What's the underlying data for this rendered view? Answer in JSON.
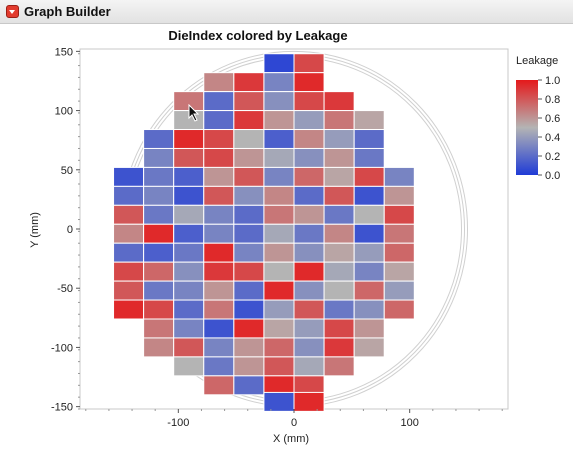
{
  "window": {
    "title": "Graph Builder",
    "disclosure_icon": "red-disclosure-triangle-icon"
  },
  "cursor": {
    "icon": "mouse-pointer-icon"
  },
  "colors": {
    "low": "#1f3bd6",
    "mid": "#b4b4b4",
    "high": "#e5191b"
  },
  "chart_data": {
    "type": "heatmap",
    "title": "DieIndex colored by Leakage",
    "xlabel": "X (mm)",
    "ylabel": "Y (mm)",
    "xlim": [
      -185,
      185
    ],
    "ylim": [
      -152,
      152
    ],
    "xticks": [
      -100,
      0,
      100
    ],
    "yticks": [
      -150,
      -100,
      -50,
      0,
      50,
      100,
      150
    ],
    "grid": false,
    "wafer_outline": {
      "shape": "circle",
      "center": [
        0,
        0
      ],
      "radius": 150
    },
    "cell_width_mm": 26,
    "cell_height_mm": 16,
    "legend": {
      "title": "Leakage",
      "position": "right",
      "range": [
        0.0,
        1.0
      ],
      "ticks": [
        "1.0",
        "0.8",
        "0.6",
        "0.4",
        "0.2",
        "0.0"
      ]
    },
    "row_y": [
      140,
      124,
      108,
      92,
      76,
      60,
      44,
      28,
      12,
      -4,
      -20,
      -36,
      -52,
      -68,
      -84,
      -100,
      -116,
      -132,
      -146
    ],
    "rows": [
      {
        "y": 140,
        "x_start": -13,
        "values": [
          0.05,
          0.85
        ]
      },
      {
        "y": 124,
        "x_start": -65,
        "values": [
          0.65,
          0.9,
          0.3,
          0.95
        ]
      },
      {
        "y": 108,
        "x_start": -91,
        "values": [
          0.7,
          0.2,
          0.8,
          0.35,
          0.85,
          0.9
        ]
      },
      {
        "y": 92,
        "x_start": -91,
        "values": [
          0.5,
          0.2,
          0.9,
          0.6,
          0.4,
          0.7,
          0.55
        ]
      },
      {
        "y": 76,
        "x_start": -117,
        "values": [
          0.2,
          0.95,
          0.85,
          0.5,
          0.15,
          0.65,
          0.4,
          0.2
        ]
      },
      {
        "y": 60,
        "x_start": -117,
        "values": [
          0.3,
          0.8,
          0.85,
          0.6,
          0.45,
          0.35,
          0.6,
          0.25
        ]
      },
      {
        "y": 44,
        "x_start": -143,
        "values": [
          0.1,
          0.25,
          0.15,
          0.6,
          0.8,
          0.3,
          0.75,
          0.55,
          0.85,
          0.3
        ]
      },
      {
        "y": 28,
        "x_start": -143,
        "values": [
          0.2,
          0.3,
          0.1,
          0.8,
          0.35,
          0.65,
          0.2,
          0.8,
          0.1,
          0.6
        ]
      },
      {
        "y": 12,
        "x_start": -143,
        "values": [
          0.8,
          0.25,
          0.45,
          0.3,
          0.2,
          0.7,
          0.6,
          0.25,
          0.5,
          0.85
        ]
      },
      {
        "y": -4,
        "x_start": -143,
        "values": [
          0.65,
          0.95,
          0.15,
          0.3,
          0.2,
          0.45,
          0.25,
          0.65,
          0.1,
          0.7
        ]
      },
      {
        "y": -20,
        "x_start": -143,
        "values": [
          0.2,
          0.15,
          0.25,
          0.95,
          0.3,
          0.6,
          0.35,
          0.55,
          0.4,
          0.75
        ]
      },
      {
        "y": -36,
        "x_start": -143,
        "values": [
          0.85,
          0.75,
          0.35,
          0.9,
          0.85,
          0.5,
          0.95,
          0.45,
          0.3,
          0.55
        ]
      },
      {
        "y": -52,
        "x_start": -143,
        "values": [
          0.8,
          0.25,
          0.3,
          0.6,
          0.2,
          0.95,
          0.35,
          0.5,
          0.75,
          0.4
        ]
      },
      {
        "y": -68,
        "x_start": -143,
        "values": [
          0.95,
          0.85,
          0.2,
          0.7,
          0.1,
          0.4,
          0.8,
          0.25,
          0.35,
          0.75
        ]
      },
      {
        "y": -84,
        "x_start": -117,
        "values": [
          0.7,
          0.3,
          0.1,
          0.95,
          0.55,
          0.4,
          0.85,
          0.6
        ]
      },
      {
        "y": -100,
        "x_start": -117,
        "values": [
          0.65,
          0.8,
          0.3,
          0.6,
          0.75,
          0.35,
          0.9,
          0.55
        ]
      },
      {
        "y": -116,
        "x_start": -91,
        "values": [
          0.5,
          0.25,
          0.6,
          0.8,
          0.45,
          0.7
        ]
      },
      {
        "y": -132,
        "x_start": -65,
        "values": [
          0.75,
          0.2,
          0.95,
          0.85
        ]
      },
      {
        "y": -146,
        "x_start": -13,
        "values": [
          0.1,
          0.95
        ]
      }
    ]
  }
}
